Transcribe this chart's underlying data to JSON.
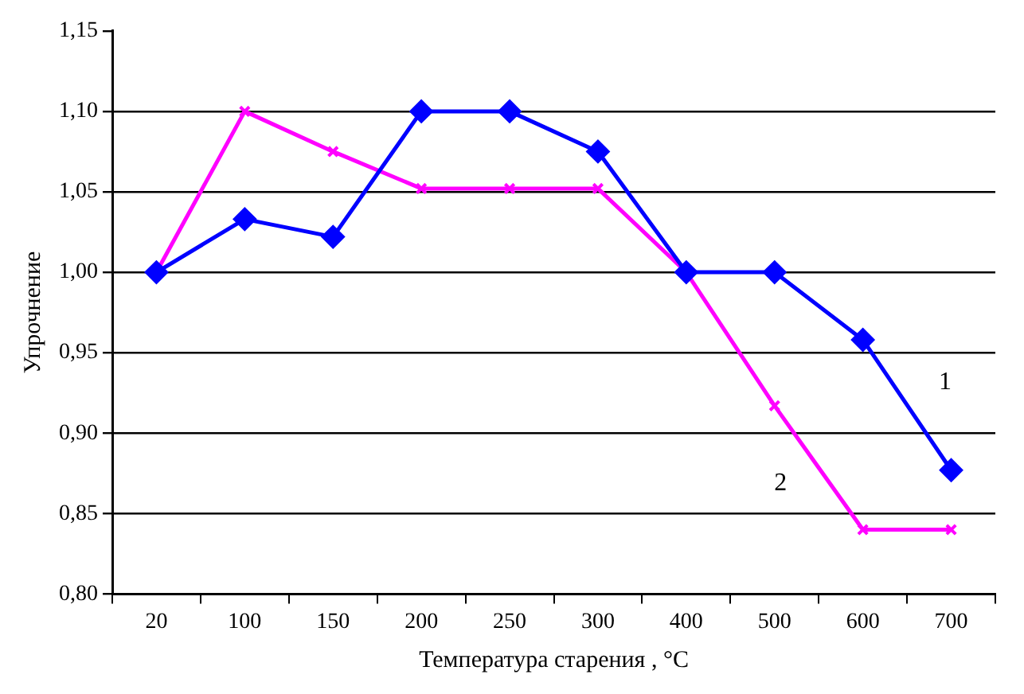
{
  "chart_data": {
    "type": "line",
    "xlabel": "Температура старения , °С",
    "ylabel": "Упрочнение",
    "categories": [
      "20",
      "100",
      "150",
      "200",
      "250",
      "300",
      "400",
      "500",
      "600",
      "700"
    ],
    "ylim": [
      0.8,
      1.15
    ],
    "yticks": [
      {
        "value": 0.8,
        "label": "0,80"
      },
      {
        "value": 0.85,
        "label": "0,85"
      },
      {
        "value": 0.9,
        "label": "0,90"
      },
      {
        "value": 0.95,
        "label": "0,95"
      },
      {
        "value": 1.0,
        "label": "1,00"
      },
      {
        "value": 1.05,
        "label": "1,05"
      },
      {
        "value": 1.1,
        "label": "1,10"
      },
      {
        "value": 1.15,
        "label": "1,15"
      }
    ],
    "grid": "y",
    "legend": false,
    "series": [
      {
        "name": "1",
        "color": "#0000ff",
        "marker": "diamond",
        "values": [
          1.0,
          1.033,
          1.022,
          1.1,
          1.1,
          1.075,
          1.0,
          1.0,
          0.958,
          0.877
        ]
      },
      {
        "name": "2",
        "color": "#ff00ff",
        "marker": "cross",
        "values": [
          1.0,
          1.1,
          1.075,
          1.052,
          1.052,
          1.052,
          1.0,
          0.917,
          0.84,
          0.84
        ]
      }
    ]
  }
}
